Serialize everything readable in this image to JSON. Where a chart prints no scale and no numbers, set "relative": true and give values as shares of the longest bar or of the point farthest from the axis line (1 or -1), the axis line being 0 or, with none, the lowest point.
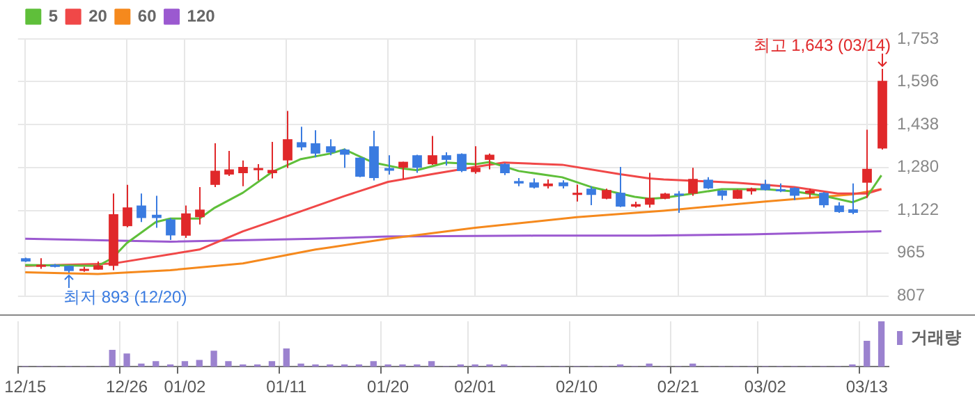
{
  "chart_data": [
    {
      "type": "candlestick",
      "categories": [
        null,
        null,
        null,
        null,
        null,
        null,
        null,
        null,
        null,
        null,
        null,
        null,
        null,
        null,
        null,
        null,
        null,
        null,
        null,
        null,
        null,
        null,
        null,
        null,
        null,
        null,
        null,
        null,
        null,
        null,
        null,
        null,
        null,
        null,
        null,
        null,
        null,
        null,
        null,
        null,
        null,
        null,
        null,
        null,
        null,
        null,
        null,
        null,
        null,
        null,
        null,
        null,
        null,
        null,
        null,
        null,
        null,
        null,
        null,
        null
      ],
      "ohlc": [
        [
          946,
          948,
          932,
          934
        ],
        [
          916,
          946,
          907,
          922
        ],
        [
          922,
          925,
          912,
          914
        ],
        [
          918,
          919,
          893,
          899
        ],
        [
          904,
          915,
          896,
          907
        ],
        [
          904,
          934,
          904,
          920
        ],
        [
          918,
          1184,
          902,
          1108
        ],
        [
          1064,
          1216,
          1060,
          1133
        ],
        [
          1140,
          1184,
          1079,
          1094
        ],
        [
          1106,
          1176,
          1058,
          1094
        ],
        [
          1089,
          1094,
          1013,
          1030
        ],
        [
          1029,
          1140,
          1021,
          1111
        ],
        [
          1097,
          1208,
          1070,
          1125
        ],
        [
          1216,
          1369,
          1208,
          1268
        ],
        [
          1254,
          1341,
          1249,
          1273
        ],
        [
          1259,
          1306,
          1211,
          1282
        ],
        [
          1270,
          1292,
          1232,
          1278
        ],
        [
          1259,
          1374,
          1240,
          1271
        ],
        [
          1306,
          1488,
          1278,
          1384
        ],
        [
          1373,
          1430,
          1343,
          1354
        ],
        [
          1369,
          1417,
          1317,
          1331
        ],
        [
          1358,
          1384,
          1325,
          1335
        ],
        [
          1346,
          1350,
          1279,
          1327
        ],
        [
          1316,
          1318,
          1244,
          1246
        ],
        [
          1358,
          1415,
          1232,
          1241
        ],
        [
          1278,
          1325,
          1254,
          1268
        ],
        [
          1279,
          1301,
          1238,
          1301
        ],
        [
          1325,
          1327,
          1260,
          1279
        ],
        [
          1292,
          1396,
          1290,
          1325
        ],
        [
          1325,
          1336,
          1287,
          1308
        ],
        [
          1330,
          1332,
          1263,
          1267
        ],
        [
          1263,
          1358,
          1257,
          1279
        ],
        [
          1308,
          1331,
          1273,
          1327
        ],
        [
          1293,
          1296,
          1252,
          1259
        ],
        [
          1230,
          1241,
          1211,
          1221
        ],
        [
          1225,
          1240,
          1203,
          1206
        ],
        [
          1211,
          1236,
          1203,
          1221
        ],
        [
          1225,
          1233,
          1203,
          1211
        ],
        [
          1179,
          1217,
          1155,
          1187
        ],
        [
          1202,
          1211,
          1141,
          1179
        ],
        [
          1165,
          1202,
          1163,
          1197
        ],
        [
          1187,
          1282,
          1134,
          1136
        ],
        [
          1136,
          1154,
          1132,
          1145
        ],
        [
          1143,
          1260,
          1132,
          1168
        ],
        [
          1165,
          1187,
          1163,
          1184
        ],
        [
          1184,
          1193,
          1113,
          1178
        ],
        [
          1184,
          1279,
          1176,
          1238
        ],
        [
          1235,
          1244,
          1201,
          1203
        ],
        [
          1195,
          1197,
          1160,
          1176
        ],
        [
          1165,
          1199,
          1165,
          1197
        ],
        [
          1192,
          1206,
          1180,
          1203
        ],
        [
          1219,
          1235,
          1195,
          1197
        ],
        [
          1200,
          1221,
          1189,
          1194
        ],
        [
          1205,
          1208,
          1160,
          1176
        ],
        [
          1184,
          1203,
          1168,
          1195
        ],
        [
          1187,
          1190,
          1132,
          1141
        ],
        [
          1140,
          1152,
          1113,
          1116
        ],
        [
          1126,
          1221,
          1108,
          1113
        ],
        [
          1224,
          1419,
          1168,
          1275
        ],
        [
          1350,
          1643,
          1346,
          1599
        ]
      ],
      "series": [
        {
          "name": "5",
          "type": "line",
          "color": "#5fbf3a",
          "values": [
            921,
            null,
            null,
            null,
            null,
            918,
            946,
            1002,
            null,
            1079,
            1092,
            null,
            1092,
            1130,
            null,
            1187,
            null,
            1263,
            null,
            1311,
            null,
            1331,
            1346,
            null,
            1298,
            null,
            1276,
            1270,
            null,
            1298,
            null,
            1292,
            1300,
            null,
            1267,
            null,
            null,
            1244,
            null,
            1208,
            null,
            null,
            1172,
            1165,
            1168,
            null,
            1184,
            null,
            1200,
            null,
            null,
            1200,
            null,
            1192,
            null,
            1176,
            null,
            1152,
            1172,
            1251
          ]
        },
        {
          "name": "20",
          "type": "line",
          "color": "#f04848",
          "values": [
            918,
            null,
            null,
            null,
            null,
            null,
            926,
            null,
            null,
            null,
            null,
            null,
            978,
            null,
            null,
            1045,
            null,
            null,
            1100,
            null,
            null,
            null,
            1175,
            null,
            null,
            1227,
            null,
            null,
            1255,
            null,
            null,
            1282,
            null,
            1298,
            null,
            null,
            null,
            1290,
            null,
            null,
            null,
            1255,
            null,
            1240,
            1236,
            null,
            null,
            null,
            null,
            1224,
            null,
            null,
            null,
            1208,
            null,
            null,
            1184,
            null,
            1184,
            1200
          ]
        },
        {
          "name": "60",
          "type": "line",
          "color": "#f5891d",
          "values": [
            894,
            null,
            null,
            null,
            null,
            888,
            null,
            null,
            null,
            null,
            902,
            null,
            null,
            null,
            null,
            927,
            null,
            null,
            null,
            null,
            978,
            986,
            null,
            null,
            null,
            1018,
            null,
            null,
            null,
            null,
            null,
            1058,
            null,
            null,
            null,
            null,
            null,
            null,
            1097,
            null,
            null,
            null,
            null,
            1117,
            1121,
            null,
            null,
            null,
            null,
            null,
            null,
            1155,
            null,
            null,
            null,
            null,
            null,
            1181,
            null,
            1200
          ]
        },
        {
          "name": "120",
          "type": "line",
          "color": "#9b59d0",
          "values": [
            1018,
            null,
            null,
            null,
            null,
            null,
            null,
            null,
            null,
            null,
            1007,
            null,
            null,
            null,
            null,
            null,
            null,
            null,
            null,
            null,
            1018,
            null,
            null,
            null,
            null,
            1026,
            null,
            null,
            null,
            null,
            null,
            null,
            null,
            null,
            null,
            1029,
            null,
            null,
            null,
            null,
            null,
            null,
            null,
            1029,
            null,
            null,
            null,
            null,
            null,
            null,
            1034,
            null,
            null,
            null,
            null,
            null,
            null,
            null,
            null,
            1045
          ]
        }
      ],
      "ylim": [
        807,
        1753
      ],
      "yticks": [
        {
          "value": 807,
          "label": "807"
        },
        {
          "value": 965,
          "label": "965"
        },
        {
          "value": 1122,
          "label": "1,122"
        },
        {
          "value": 1280,
          "label": "1,280"
        },
        {
          "value": 1438,
          "label": "1,438"
        },
        {
          "value": 1596,
          "label": "1,596"
        },
        {
          "value": 1753,
          "label": "1,753"
        }
      ],
      "grid": true,
      "legend": "top left",
      "tick_labels": "y",
      "annotations": [
        "최고 1,643 (03/14)",
        "최저 893 (12/20)"
      ]
    },
    {
      "type": "bar",
      "categories": [
        "12/15",
        null,
        null,
        null,
        null,
        null,
        null,
        "12/26",
        null,
        null,
        null,
        "01/02",
        null,
        null,
        null,
        null,
        null,
        null,
        "01/11",
        null,
        null,
        null,
        null,
        null,
        null,
        "01/20",
        null,
        null,
        null,
        null,
        null,
        "02/01",
        null,
        null,
        null,
        null,
        null,
        null,
        "02/10",
        null,
        null,
        null,
        null,
        null,
        null,
        "02/21",
        null,
        null,
        null,
        null,
        null,
        "03/02",
        null,
        null,
        null,
        null,
        null,
        null,
        "03/13",
        null
      ],
      "series": [
        {
          "name": "거래량",
          "color": "#9b82cf",
          "values": [
            0,
            0,
            0,
            0,
            0,
            0,
            0.36,
            0.28,
            0.06,
            0.11,
            0.04,
            0.11,
            0.14,
            0.34,
            0.11,
            0.04,
            0.04,
            0.11,
            0.39,
            0.06,
            0.04,
            0.04,
            0.04,
            0.04,
            0.11,
            0.04,
            0.04,
            0.04,
            0.11,
            0,
            0.04,
            0.04,
            0.04,
            0.04,
            0,
            0,
            0,
            0,
            0,
            0,
            0,
            0.04,
            0,
            0.06,
            0,
            0,
            0.06,
            0,
            0,
            0,
            0,
            0,
            0,
            0,
            0,
            0,
            0,
            0.04,
            0.56,
            1
          ]
        }
      ],
      "relative": true,
      "grid": "x",
      "legend": "right",
      "tick_labels": "x"
    }
  ]
}
